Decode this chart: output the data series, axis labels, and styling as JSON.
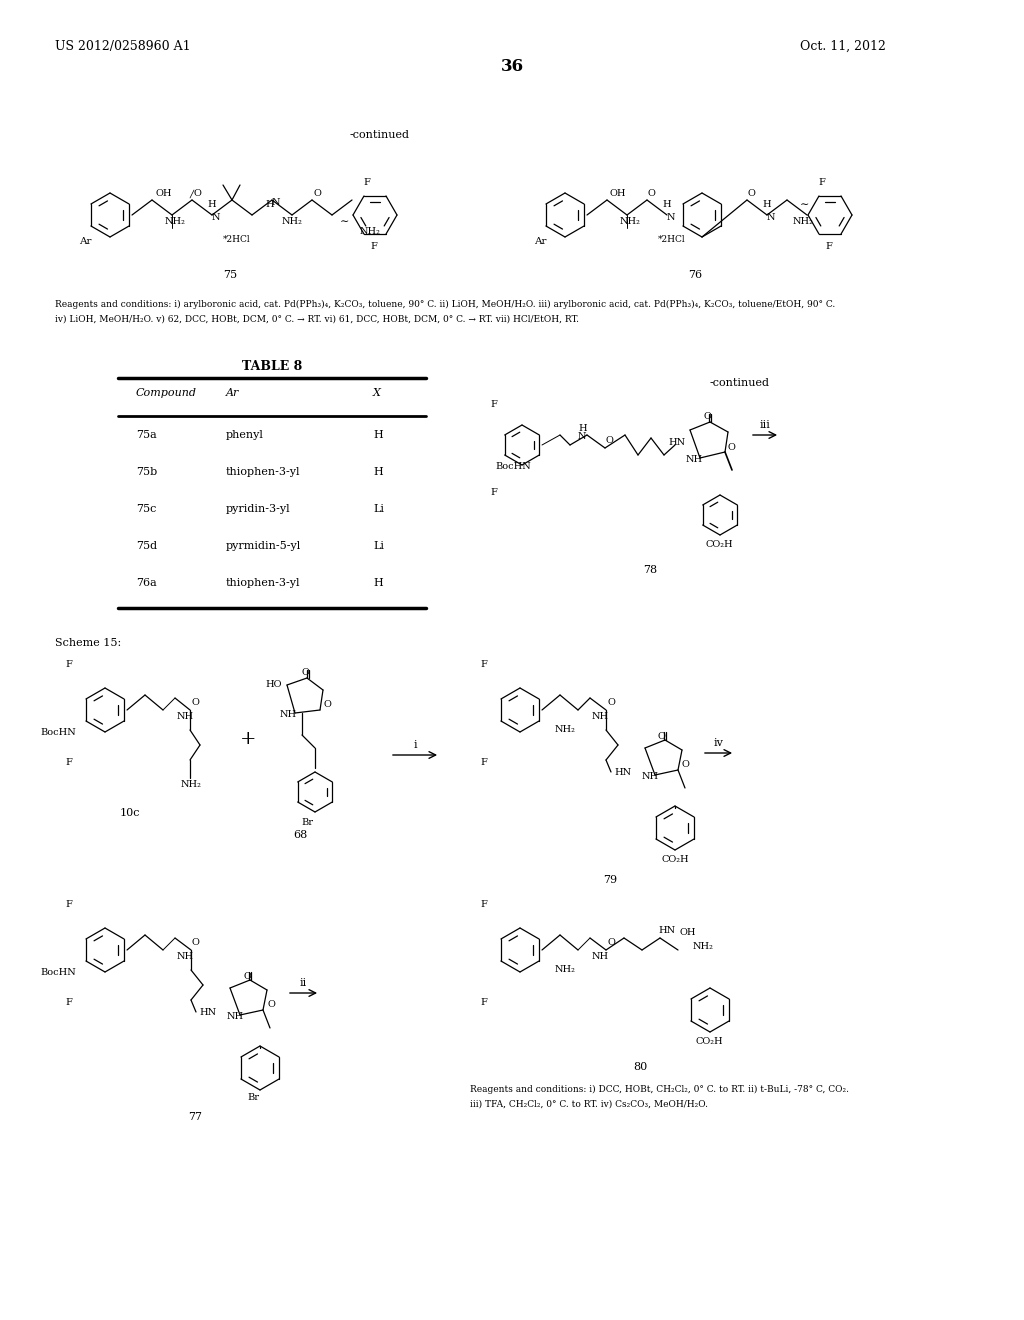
{
  "patent_number": "US 2012/0258960 A1",
  "date": "Oct. 11, 2012",
  "page_number": "36",
  "continued_label_top": "-continued",
  "continued_label_right": "-continued",
  "compound_75_label": "75",
  "compound_76_label": "76",
  "table_title": "TABLE 8",
  "table_headers": [
    "Compound",
    "Ar",
    "X"
  ],
  "table_rows": [
    [
      "75a",
      "phenyl",
      "H"
    ],
    [
      "75b",
      "thiophen-3-yl",
      "H"
    ],
    [
      "75c",
      "pyridin-3-yl",
      "Li"
    ],
    [
      "75d",
      "pyrmidin-5-yl",
      "Li"
    ],
    [
      "76a",
      "thiophen-3-yl",
      "H"
    ]
  ],
  "reagents_text_1": "Reagents and conditions: i) arylboronic acid, cat. Pd(PPh₃)₄, K₂CO₃, toluene, 90° C. ii) LiOH, MeOH/H₂O. iii) arylboronic acid, cat. Pd(PPh₃)₄, K₂CO₃, toluene/EtOH, 90° C.",
  "reagents_text_2": "iv) LiOH, MeOH/H₂O. v) 62, DCC, HOBt, DCM, 0° C. → RT. vi) 61, DCC, HOBt, DCM, 0° C. → RT. vii) HCl/EtOH, RT.",
  "scheme_15": "Scheme 15:",
  "compound_10c": "10c",
  "compound_68": "68",
  "compound_77": "77",
  "compound_78": "78",
  "compound_79": "79",
  "compound_80": "80",
  "reagents_scheme15_1": "Reagents and conditions: i) DCC, HOBt, CH₂Cl₂, 0° C. to RT. ii) t-BuLi, -78° C, CO₂.",
  "reagents_scheme15_2": "iii) TFA, CH₂Cl₂, 0° C. to RT. iv) Cs₂CO₃, MeOH/H₂O.",
  "bg_color": "#ffffff"
}
